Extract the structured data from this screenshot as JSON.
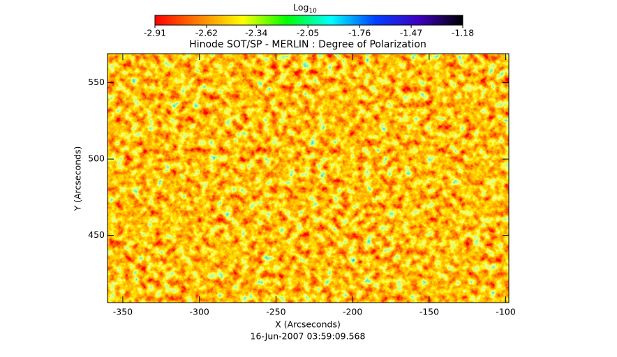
{
  "chart_data": {
    "type": "image",
    "title": "Hinode SOT/SP - MERLIN : Degree of Polarization",
    "xlabel": "X (Arcseconds)",
    "ylabel": "Y (Arcseconds)",
    "date": "16-Jun-2007 03:59:09.568",
    "xlim": [
      -360,
      -98
    ],
    "xticks": [
      -350,
      -300,
      -250,
      -200,
      -150,
      -100
    ],
    "ylim": [
      406,
      569
    ],
    "yticks": [
      450,
      500,
      550
    ],
    "colorbar": {
      "label": "Log",
      "label_subscript": "10",
      "lim": [
        -2.91,
        -1.18
      ],
      "ticks": [
        -2.91,
        -2.62,
        -2.34,
        -2.05,
        -1.76,
        -1.47,
        -1.18
      ],
      "colormap": [
        "#ff0000",
        "#ff8000",
        "#ffff00",
        "#00ff00",
        "#00ffff",
        "#0040ff",
        "#4000c0",
        "#000000"
      ]
    }
  }
}
